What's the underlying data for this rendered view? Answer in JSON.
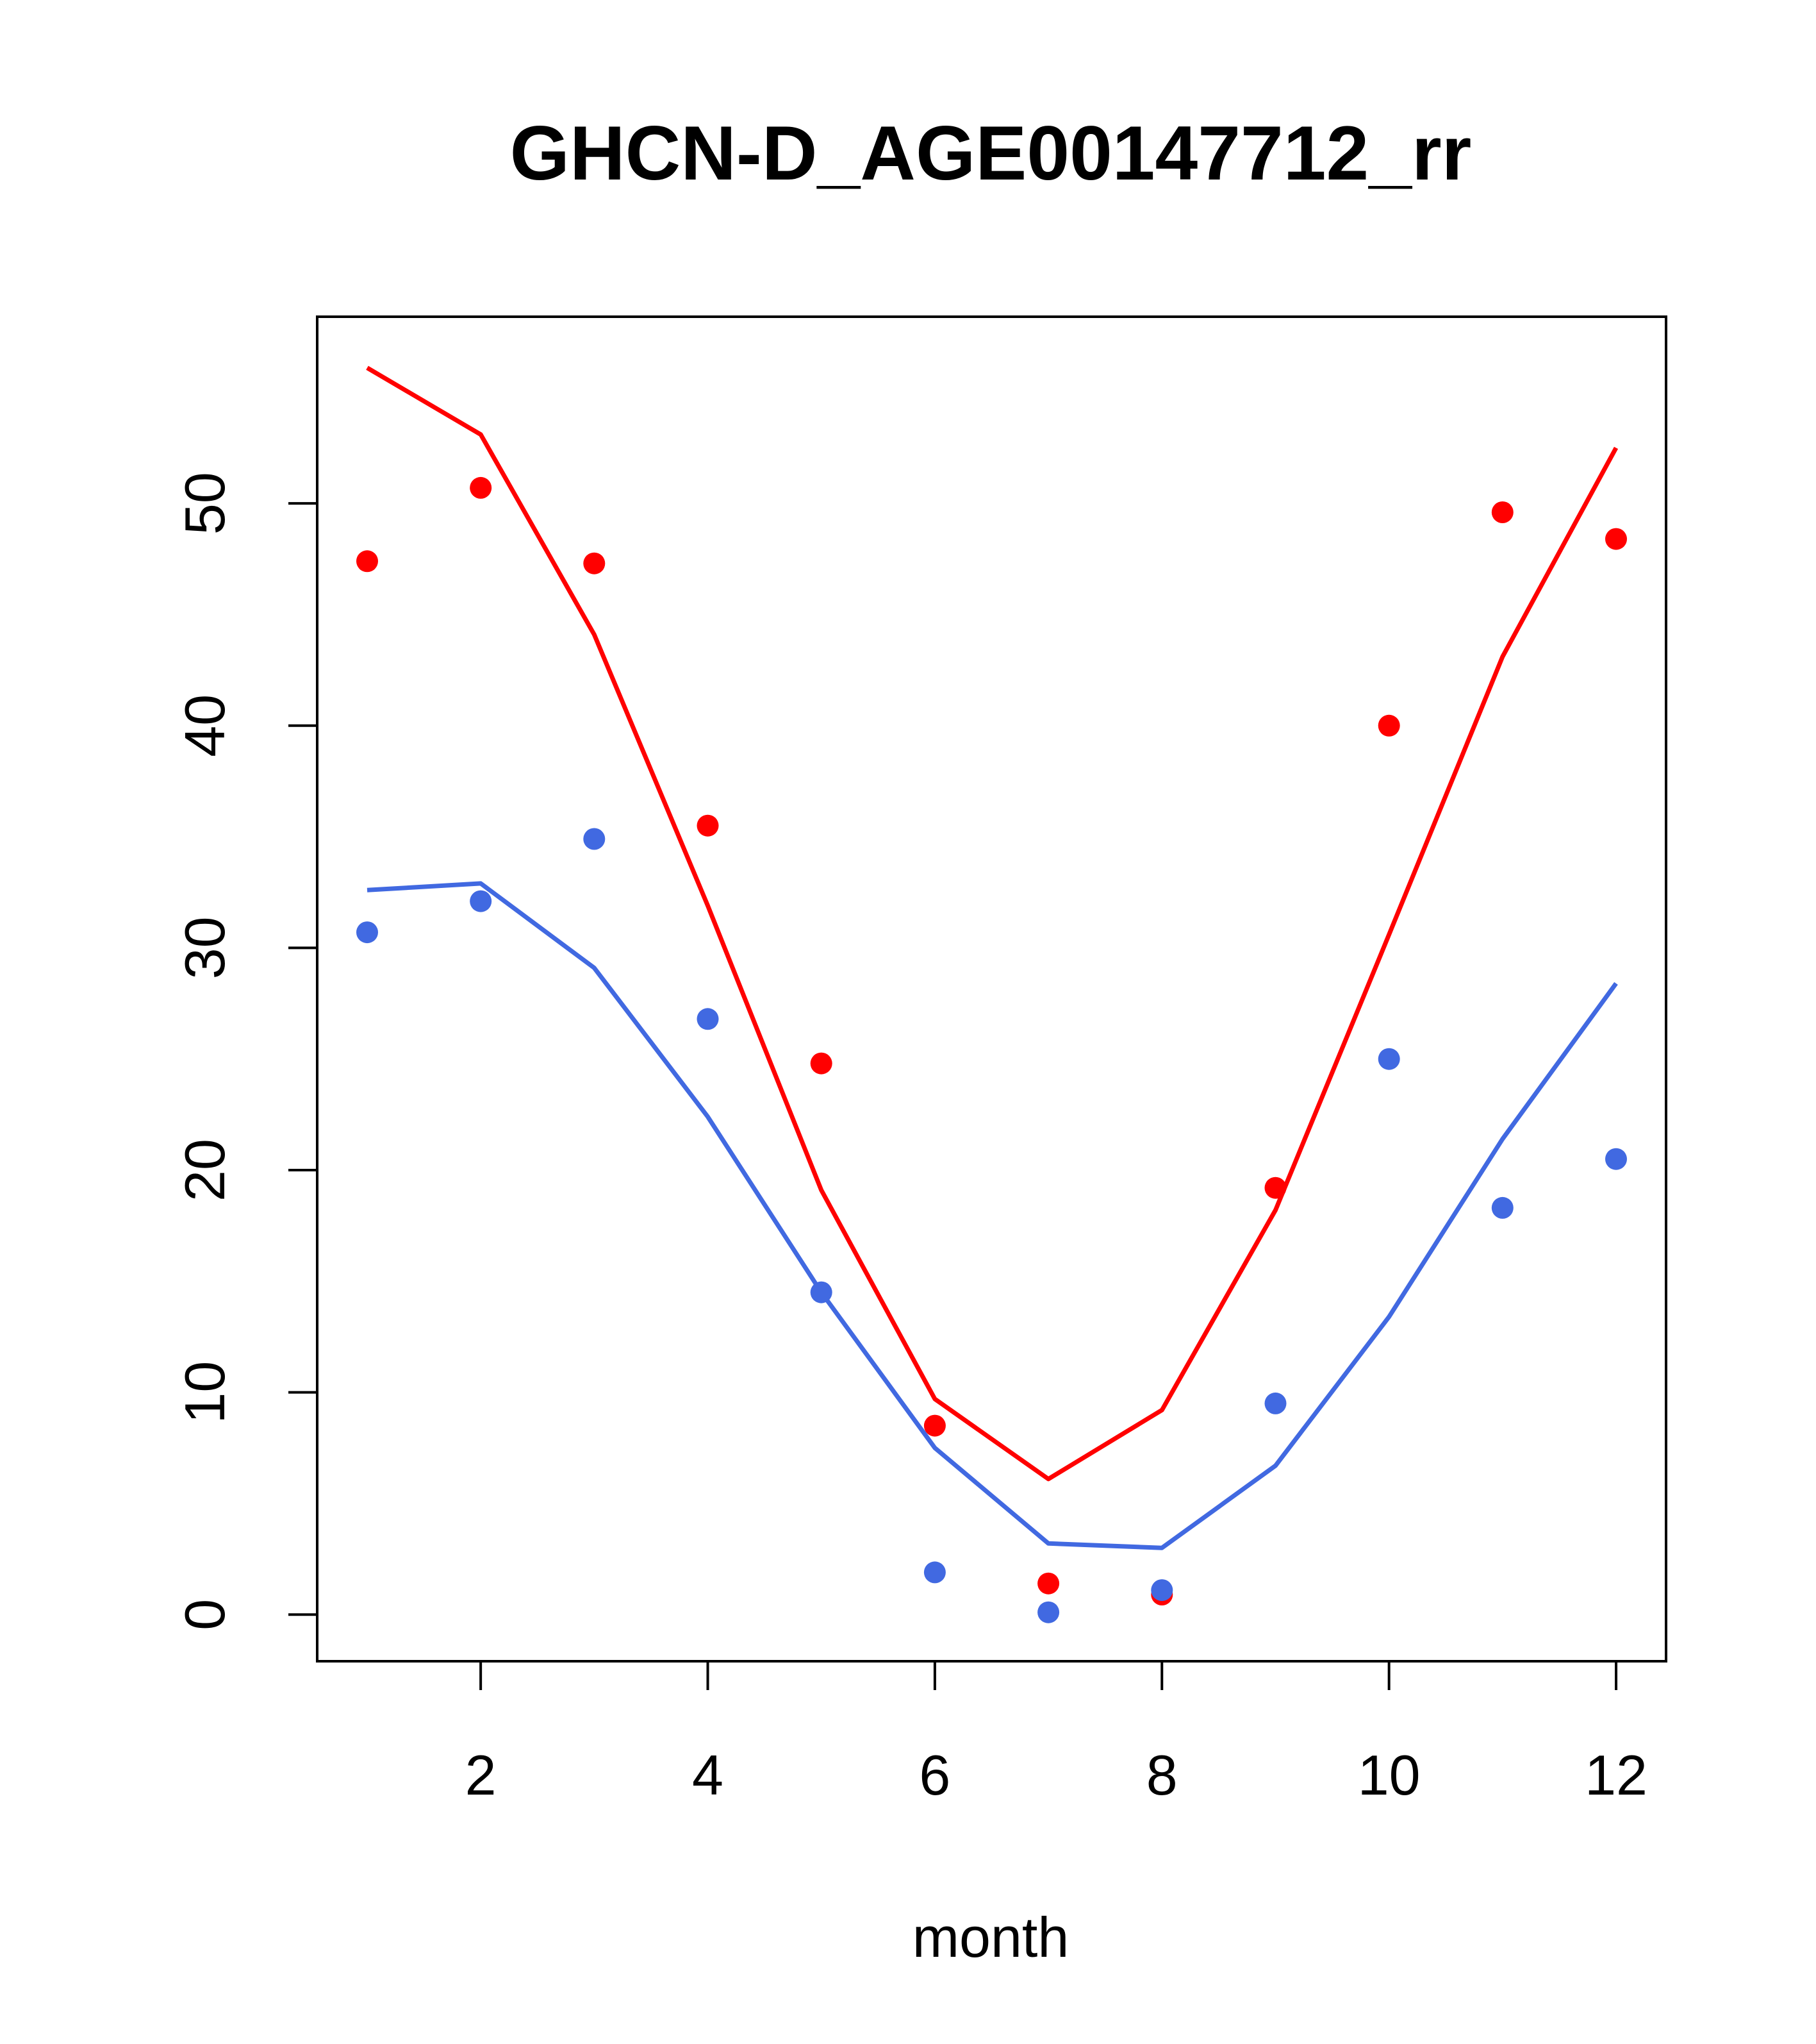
{
  "chart_data": {
    "type": "scatter",
    "title": "GHCN-D_AGE00147712_rr",
    "xlabel": "month",
    "ylabel": "",
    "xlim": [
      0.56,
      12.44
    ],
    "ylim": [
      -2.1,
      58.4
    ],
    "x_ticks": [
      2,
      4,
      6,
      8,
      10,
      12
    ],
    "y_ticks": [
      0,
      10,
      20,
      30,
      40,
      50
    ],
    "grid": false,
    "legend": "none",
    "series": [
      {
        "name": "red-points",
        "kind": "points",
        "color": "#ff0000",
        "x": [
          1,
          2,
          3,
          4,
          5,
          6,
          7,
          8,
          9,
          10,
          11,
          12
        ],
        "values": [
          47.4,
          50.7,
          47.3,
          35.5,
          24.8,
          8.5,
          1.4,
          0.9,
          19.2,
          40.0,
          49.6,
          48.4
        ]
      },
      {
        "name": "blue-points",
        "kind": "points",
        "color": "#4169e1",
        "x": [
          1,
          2,
          3,
          4,
          5,
          6,
          7,
          8,
          9,
          10,
          11,
          12
        ],
        "values": [
          30.7,
          32.1,
          34.9,
          26.8,
          14.5,
          1.9,
          0.1,
          1.1,
          9.5,
          25.0,
          18.3,
          20.5
        ]
      },
      {
        "name": "red-line",
        "kind": "line",
        "color": "#ff0000",
        "x": [
          1,
          2,
          3,
          4,
          5,
          6,
          7,
          8,
          9,
          10,
          11,
          12
        ],
        "values": [
          56.1,
          53.1,
          44.1,
          31.9,
          19.1,
          9.7,
          6.1,
          9.2,
          18.2,
          30.6,
          43.1,
          52.5
        ]
      },
      {
        "name": "blue-line",
        "kind": "line",
        "color": "#4169e1",
        "x": [
          1,
          2,
          3,
          4,
          5,
          6,
          7,
          8,
          9,
          10,
          11,
          12
        ],
        "values": [
          32.6,
          32.9,
          29.1,
          22.4,
          14.5,
          7.5,
          3.2,
          3.0,
          6.7,
          13.4,
          21.4,
          28.4
        ]
      }
    ]
  }
}
